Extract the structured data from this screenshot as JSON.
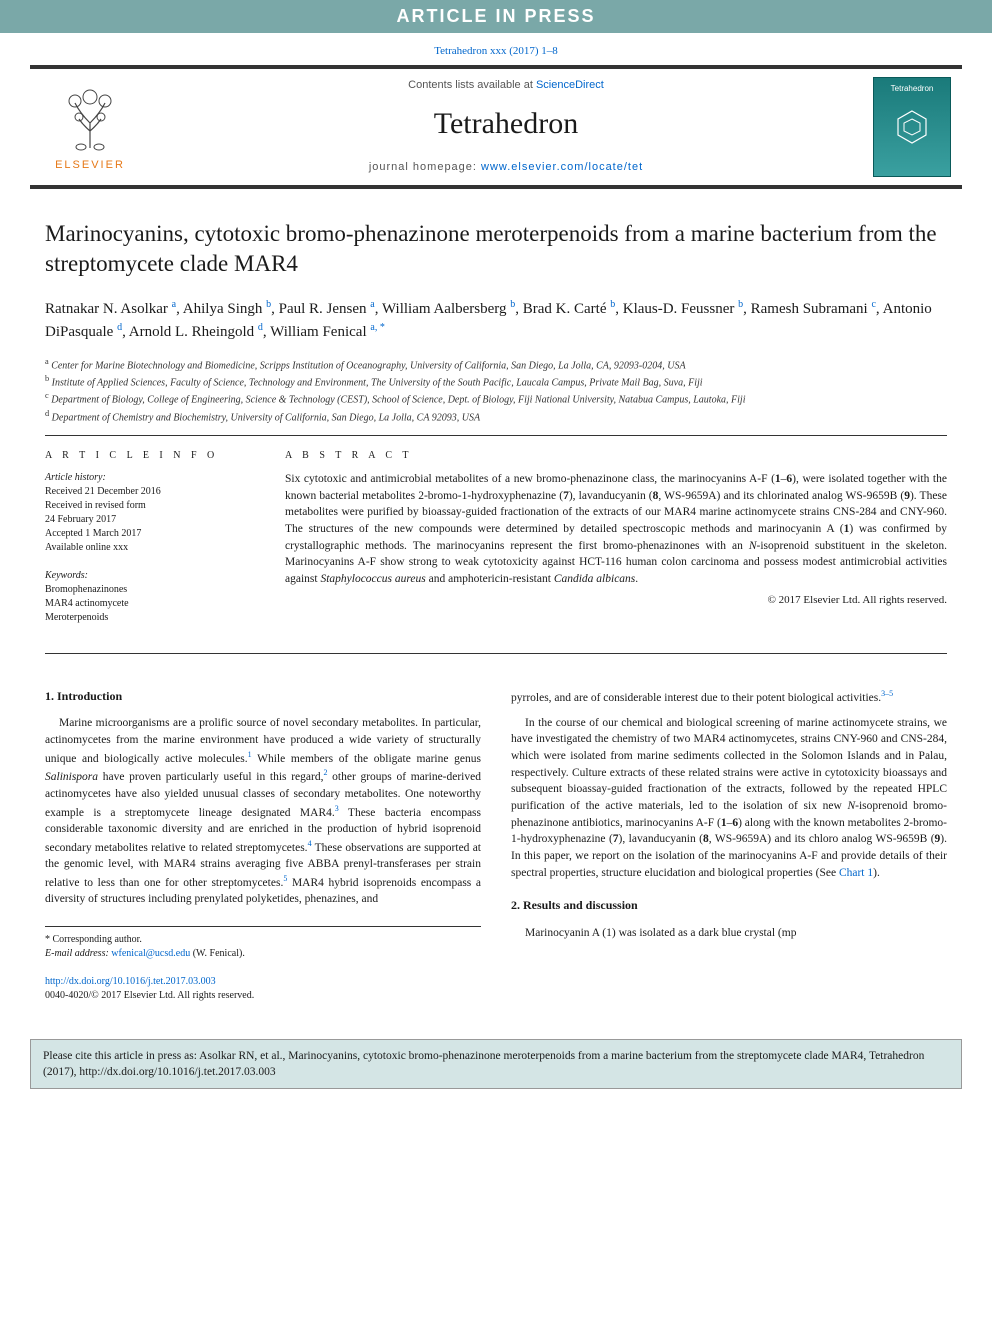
{
  "banner": "ARTICLE IN PRESS",
  "citation_top": {
    "text": "Tetrahedron xxx (2017) 1–8",
    "href": "#"
  },
  "header": {
    "publisher": "ELSEVIER",
    "contents_prefix": "Contents lists available at ",
    "contents_link": "ScienceDirect",
    "journal": "Tetrahedron",
    "homepage_prefix": "journal homepage: ",
    "homepage_link": "www.elsevier.com/locate/tet",
    "cover_label": "Tetrahedron"
  },
  "title": "Marinocyanins, cytotoxic bromo-phenazinone meroterpenoids from a marine bacterium from the streptomycete clade MAR4",
  "authors": [
    {
      "name": "Ratnakar N. Asolkar",
      "affs": [
        "a"
      ]
    },
    {
      "name": "Ahilya Singh",
      "affs": [
        "b"
      ]
    },
    {
      "name": "Paul R. Jensen",
      "affs": [
        "a"
      ]
    },
    {
      "name": "William Aalbersberg",
      "affs": [
        "b"
      ]
    },
    {
      "name": "Brad K. Carté",
      "affs": [
        "b"
      ]
    },
    {
      "name": "Klaus-D. Feussner",
      "affs": [
        "b"
      ]
    },
    {
      "name": "Ramesh Subramani",
      "affs": [
        "c"
      ]
    },
    {
      "name": "Antonio DiPasquale",
      "affs": [
        "d"
      ]
    },
    {
      "name": "Arnold L. Rheingold",
      "affs": [
        "d"
      ]
    },
    {
      "name": "William Fenical",
      "affs": [
        "a",
        "*"
      ]
    }
  ],
  "affiliations": [
    {
      "key": "a",
      "text": "Center for Marine Biotechnology and Biomedicine, Scripps Institution of Oceanography, University of California, San Diego, La Jolla, CA, 92093-0204, USA"
    },
    {
      "key": "b",
      "text": "Institute of Applied Sciences, Faculty of Science, Technology and Environment, The University of the South Pacific, Laucala Campus, Private Mail Bag, Suva, Fiji"
    },
    {
      "key": "c",
      "text": "Department of Biology, College of Engineering, Science & Technology (CEST), School of Science, Dept. of Biology, Fiji National University, Natabua Campus, Lautoka, Fiji"
    },
    {
      "key": "d",
      "text": "Department of Chemistry and Biochemistry, University of California, San Diego, La Jolla, CA 92093, USA"
    }
  ],
  "article_info": {
    "heading": "A R T I C L E  I N F O",
    "history_label": "Article history:",
    "history": [
      "Received 21 December 2016",
      "Received in revised form",
      "24 February 2017",
      "Accepted 1 March 2017",
      "Available online xxx"
    ],
    "keywords_label": "Keywords:",
    "keywords": [
      "Bromophenazinones",
      "MAR4 actinomycete",
      "Meroterpenoids"
    ]
  },
  "abstract": {
    "heading": "A B S T R A C T",
    "text": "Six cytotoxic and antimicrobial metabolites of a new bromo-phenazinone class, the marinocyanins A-F (1–6), were isolated together with the known bacterial metabolites 2-bromo-1-hydroxyphenazine (7), lavanducyanin (8, WS-9659A) and its chlorinated analog WS-9659B (9). These metabolites were purified by bioassay-guided fractionation of the extracts of our MAR4 marine actinomycete strains CNS-284 and CNY-960. The structures of the new compounds were determined by detailed spectroscopic methods and marinocyanin A (1) was confirmed by crystallographic methods. The marinocyanins represent the first bromo-phenazinones with an N-isoprenoid substituent in the skeleton. Marinocyanins A-F show strong to weak cytotoxicity against HCT-116 human colon carcinoma and possess modest antimicrobial activities against Staphylococcus aureus and amphotericin-resistant Candida albicans.",
    "copyright": "© 2017 Elsevier Ltd. All rights reserved."
  },
  "sections": {
    "intro": {
      "heading": "1. Introduction",
      "p1_part1": "Marine microorganisms are a prolific source of novel secondary metabolites. In particular, actinomycetes from the marine environment have produced a wide variety of structurally unique and biologically active molecules.",
      "p1_ref1": "1",
      "p1_part2": " While members of the obligate marine genus ",
      "p1_italic1": "Salinispora",
      "p1_part3": " have proven particularly useful in this regard,",
      "p1_ref2": "2",
      "p1_part4": " other groups of marine-derived actinomycetes have also yielded unusual classes of secondary metabolites. One noteworthy example is a streptomycete lineage designated MAR4.",
      "p1_ref3": "3",
      "p1_part5": " These bacteria encompass considerable taxonomic diversity and are enriched in the production of hybrid isoprenoid secondary metabolites relative to related streptomycetes.",
      "p1_ref4": "4",
      "p1_part6": " These observations are supported at the genomic level, with MAR4 strains averaging five ABBA prenyl-transferases per strain relative to less than one for other streptomycetes.",
      "p1_ref5": "5",
      "p1_part7": " MAR4 hybrid isoprenoids encompass a diversity of structures including prenylated polyketides, phenazines, and",
      "p2_part1": "pyrroles, and are of considerable interest due to their potent biological activities.",
      "p2_ref": "3–5",
      "p3": "In the course of our chemical and biological screening of marine actinomycete strains, we have investigated the chemistry of two MAR4 actinomycetes, strains CNY-960 and CNS-284, which were isolated from marine sediments collected in the Solomon Islands and in Palau, respectively. Culture extracts of these related strains were active in cytotoxicity bioassays and subsequent bioassay-guided fractionation of the extracts, followed by the repeated HPLC purification of the active materials, led to the isolation of six new N-isoprenoid bromo-phenazinone antibiotics, marinocyanins A-F (1–6) along with the known metabolites 2-bromo-1-hydroxyphenazine (7), lavanducyanin (8, WS-9659A) and its chloro analog WS-9659B (9). In this paper, we report on the isolation of the marinocyanins A-F and provide details of their spectral properties, structure elucidation and biological properties (See ",
      "p3_chart": "Chart 1",
      "p3_end": ")."
    },
    "results": {
      "heading": "2. Results and discussion",
      "p1": "Marinocyanin A (1) was isolated as a dark blue crystal (mp"
    }
  },
  "footnote": {
    "corr": "* Corresponding author.",
    "email_label": "E-mail address: ",
    "email": "wfenical@ucsd.edu",
    "email_suffix": " (W. Fenical)."
  },
  "doi": {
    "link": "http://dx.doi.org/10.1016/j.tet.2017.03.003",
    "issn": "0040-4020/© 2017 Elsevier Ltd. All rights reserved."
  },
  "cite_box": "Please cite this article in press as: Asolkar RN, et al., Marinocyanins, cytotoxic bromo-phenazinone meroterpenoids from a marine bacterium from the streptomycete clade MAR4, Tetrahedron (2017), http://dx.doi.org/10.1016/j.tet.2017.03.003",
  "colors": {
    "banner_bg": "#7aa8a8",
    "link": "#0066cc",
    "elsevier_orange": "#e67817",
    "rule_dark": "#333333",
    "cite_box_bg": "#d4e5e5"
  }
}
